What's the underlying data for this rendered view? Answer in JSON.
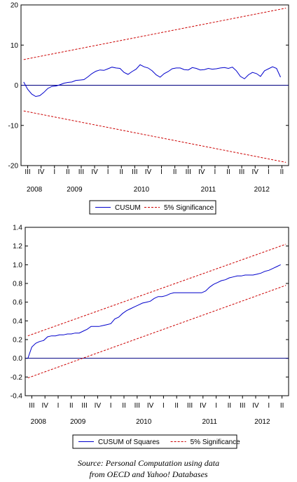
{
  "chart_data": [
    {
      "type": "line",
      "ylim": [
        -20,
        20
      ],
      "yticks": [
        -20,
        -10,
        0,
        10,
        20
      ],
      "quarter_labels": [
        "III",
        "IV",
        "I",
        "II",
        "III",
        "IV",
        "I",
        "II",
        "III",
        "IV",
        "I",
        "II",
        "III",
        "IV",
        "I",
        "II",
        "III",
        "IV",
        "I",
        "II"
      ],
      "year_labels": [
        {
          "label": "2008",
          "quarter_index": 0.5
        },
        {
          "label": "2009",
          "quarter_index": 3.5
        },
        {
          "label": "2010",
          "quarter_index": 8.5
        },
        {
          "label": "2011",
          "quarter_index": 13.5
        },
        {
          "label": "2012",
          "quarter_index": 17.5
        }
      ],
      "x_range": [
        0,
        20
      ],
      "zero_line": 0,
      "series": [
        {
          "name": "CUSUM",
          "color": "#0000cc",
          "style": "solid",
          "x": [
            0.2,
            0.5,
            0.8,
            1.1,
            1.4,
            1.7,
            2.0,
            2.3,
            2.6,
            2.9,
            3.2,
            3.5,
            3.8,
            4.1,
            4.4,
            4.7,
            5.0,
            5.3,
            5.6,
            5.9,
            6.2,
            6.5,
            6.8,
            7.1,
            7.4,
            7.7,
            8.0,
            8.3,
            8.6,
            8.9,
            9.2,
            9.5,
            9.8,
            10.1,
            10.4,
            10.7,
            11.0,
            11.3,
            11.6,
            11.9,
            12.2,
            12.5,
            12.8,
            13.1,
            13.4,
            13.7,
            14.0,
            14.3,
            14.6,
            14.9,
            15.2,
            15.5,
            15.8,
            16.1,
            16.4,
            16.7,
            17.0,
            17.3,
            17.6,
            17.9,
            18.2,
            18.5,
            18.8,
            19.1,
            19.4
          ],
          "values": [
            0.8,
            -1.0,
            -2.2,
            -2.8,
            -2.6,
            -1.8,
            -0.8,
            -0.3,
            -0.2,
            0.1,
            0.5,
            0.7,
            0.8,
            1.2,
            1.3,
            1.4,
            2.1,
            2.9,
            3.5,
            3.8,
            3.7,
            4.1,
            4.5,
            4.3,
            4.2,
            3.2,
            2.7,
            3.4,
            4.0,
            5.1,
            4.6,
            4.3,
            3.6,
            2.6,
            2.0,
            2.9,
            3.4,
            4.1,
            4.3,
            4.3,
            3.9,
            3.8,
            4.4,
            4.2,
            3.8,
            3.9,
            4.2,
            4.0,
            4.1,
            4.3,
            4.4,
            4.2,
            4.5,
            3.6,
            2.2,
            1.6,
            2.6,
            3.2,
            2.9,
            2.2,
            3.6,
            4.1,
            4.6,
            4.2,
            2.0
          ]
        },
        {
          "name": "5% Significance",
          "color": "#cc0000",
          "style": "dashed",
          "x": [
            0.2,
            19.8
          ],
          "values": [
            6.4,
            19.2
          ]
        },
        {
          "name": "5% Significance (lower)",
          "color": "#cc0000",
          "style": "dashed",
          "x": [
            0.2,
            19.8
          ],
          "values": [
            -6.4,
            -19.2
          ]
        }
      ],
      "legend": [
        {
          "label": "CUSUM",
          "color": "#0000cc",
          "style": "solid"
        },
        {
          "label": "5% Significance",
          "color": "#cc0000",
          "style": "dashed"
        }
      ],
      "legend_position": "bottom-center"
    },
    {
      "type": "line",
      "ylim": [
        -0.4,
        1.4
      ],
      "yticks": [
        -0.4,
        -0.2,
        0.0,
        0.2,
        0.4,
        0.6,
        0.8,
        1.0,
        1.2,
        1.4
      ],
      "quarter_labels": [
        "III",
        "IV",
        "I",
        "II",
        "III",
        "IV",
        "I",
        "II",
        "III",
        "IV",
        "I",
        "II",
        "III",
        "IV",
        "I",
        "II",
        "III",
        "IV",
        "I",
        "II"
      ],
      "year_labels": [
        {
          "label": "2008",
          "quarter_index": 0.5
        },
        {
          "label": "2009",
          "quarter_index": 3.5
        },
        {
          "label": "2010",
          "quarter_index": 8.5
        },
        {
          "label": "2011",
          "quarter_index": 13.5
        },
        {
          "label": "2012",
          "quarter_index": 17.5
        }
      ],
      "x_range": [
        0,
        20
      ],
      "zero_line": 0,
      "series": [
        {
          "name": "CUSUM of Squares",
          "color": "#0000cc",
          "style": "solid",
          "x": [
            0.2,
            0.5,
            0.8,
            1.1,
            1.4,
            1.7,
            2.0,
            2.3,
            2.6,
            2.9,
            3.2,
            3.5,
            3.8,
            4.1,
            4.4,
            4.7,
            5.0,
            5.3,
            5.6,
            5.9,
            6.2,
            6.5,
            6.8,
            7.1,
            7.4,
            7.7,
            8.0,
            8.3,
            8.6,
            8.9,
            9.2,
            9.5,
            9.8,
            10.1,
            10.4,
            10.7,
            11.0,
            11.3,
            11.6,
            11.9,
            12.2,
            12.5,
            12.8,
            13.1,
            13.4,
            13.7,
            14.0,
            14.3,
            14.6,
            14.9,
            15.2,
            15.5,
            15.8,
            16.1,
            16.4,
            16.7,
            17.0,
            17.3,
            17.6,
            17.9,
            18.2,
            18.5,
            18.8,
            19.1,
            19.4
          ],
          "values": [
            0.0,
            0.12,
            0.16,
            0.18,
            0.19,
            0.23,
            0.24,
            0.24,
            0.25,
            0.25,
            0.26,
            0.26,
            0.27,
            0.27,
            0.29,
            0.31,
            0.34,
            0.34,
            0.34,
            0.35,
            0.36,
            0.37,
            0.42,
            0.44,
            0.48,
            0.51,
            0.53,
            0.55,
            0.57,
            0.59,
            0.6,
            0.61,
            0.64,
            0.66,
            0.66,
            0.67,
            0.69,
            0.7,
            0.7,
            0.7,
            0.7,
            0.7,
            0.7,
            0.7,
            0.7,
            0.72,
            0.76,
            0.79,
            0.81,
            0.83,
            0.84,
            0.86,
            0.87,
            0.88,
            0.88,
            0.89,
            0.89,
            0.89,
            0.9,
            0.91,
            0.93,
            0.94,
            0.96,
            0.98,
            1.0
          ]
        },
        {
          "name": "5% Significance",
          "color": "#cc0000",
          "style": "dashed",
          "x": [
            0.2,
            19.8
          ],
          "values": [
            0.24,
            1.22
          ]
        },
        {
          "name": "5% Significance (lower)",
          "color": "#cc0000",
          "style": "dashed",
          "x": [
            0.2,
            19.8
          ],
          "values": [
            -0.21,
            0.78
          ]
        }
      ],
      "legend": [
        {
          "label": "CUSUM of Squares",
          "color": "#0000cc",
          "style": "solid"
        },
        {
          "label": "5% Significance",
          "color": "#cc0000",
          "style": "dashed"
        }
      ],
      "legend_position": "bottom-center"
    }
  ],
  "source_line1": "Source: Personal Computation using data",
  "source_line2": "from OECD and Yahoo! Databases"
}
